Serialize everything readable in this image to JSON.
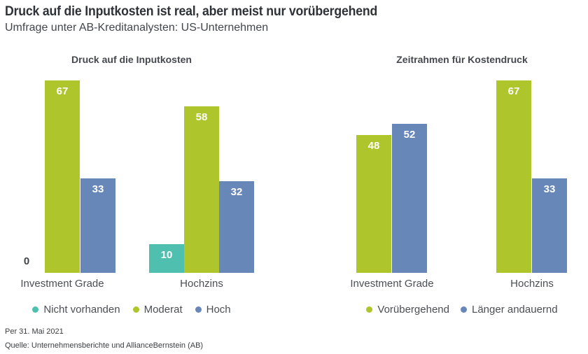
{
  "header": {
    "title": "Druck auf die Inputkosten ist real, aber meist nur vorübergehend",
    "subtitle": "Umfrage unter AB-Kreditanalysten: US-Unternehmen"
  },
  "colors": {
    "teal": "#4fbfb0",
    "green": "#aec62c",
    "blue": "#6887b9",
    "title_text": "#2e3237",
    "label_text": "#4b4f54",
    "value_label_text": "#ffffff"
  },
  "chart_data": [
    {
      "type": "bar",
      "title": "Druck auf die Inputkosten",
      "categories": [
        "Investment Grade",
        "Hochzins"
      ],
      "series": [
        {
          "name": "Nicht vorhanden",
          "color_key": "teal",
          "values": [
            0,
            10
          ]
        },
        {
          "name": "Moderat",
          "color_key": "green",
          "values": [
            67,
            58
          ]
        },
        {
          "name": "Hoch",
          "color_key": "blue",
          "values": [
            33,
            32
          ]
        }
      ],
      "ylim": [
        0,
        70
      ],
      "grid": false,
      "value_labels": "inside-top",
      "legend_position": "bottom"
    },
    {
      "type": "bar",
      "title": "Zeitrahmen für Kostendruck",
      "categories": [
        "Investment Grade",
        "Hochzins"
      ],
      "series": [
        {
          "name": "Vorübergehend",
          "color_key": "green",
          "values": [
            48,
            67
          ]
        },
        {
          "name": "Länger andauernd",
          "color_key": "blue",
          "values": [
            52,
            33
          ]
        }
      ],
      "ylim": [
        0,
        70
      ],
      "grid": false,
      "value_labels": "inside-top",
      "legend_position": "bottom"
    }
  ],
  "footer": {
    "as_of": "Per 31. Mai 2021",
    "source": "Quelle: Unternehmensberichte und AllianceBernstein (AB)"
  }
}
